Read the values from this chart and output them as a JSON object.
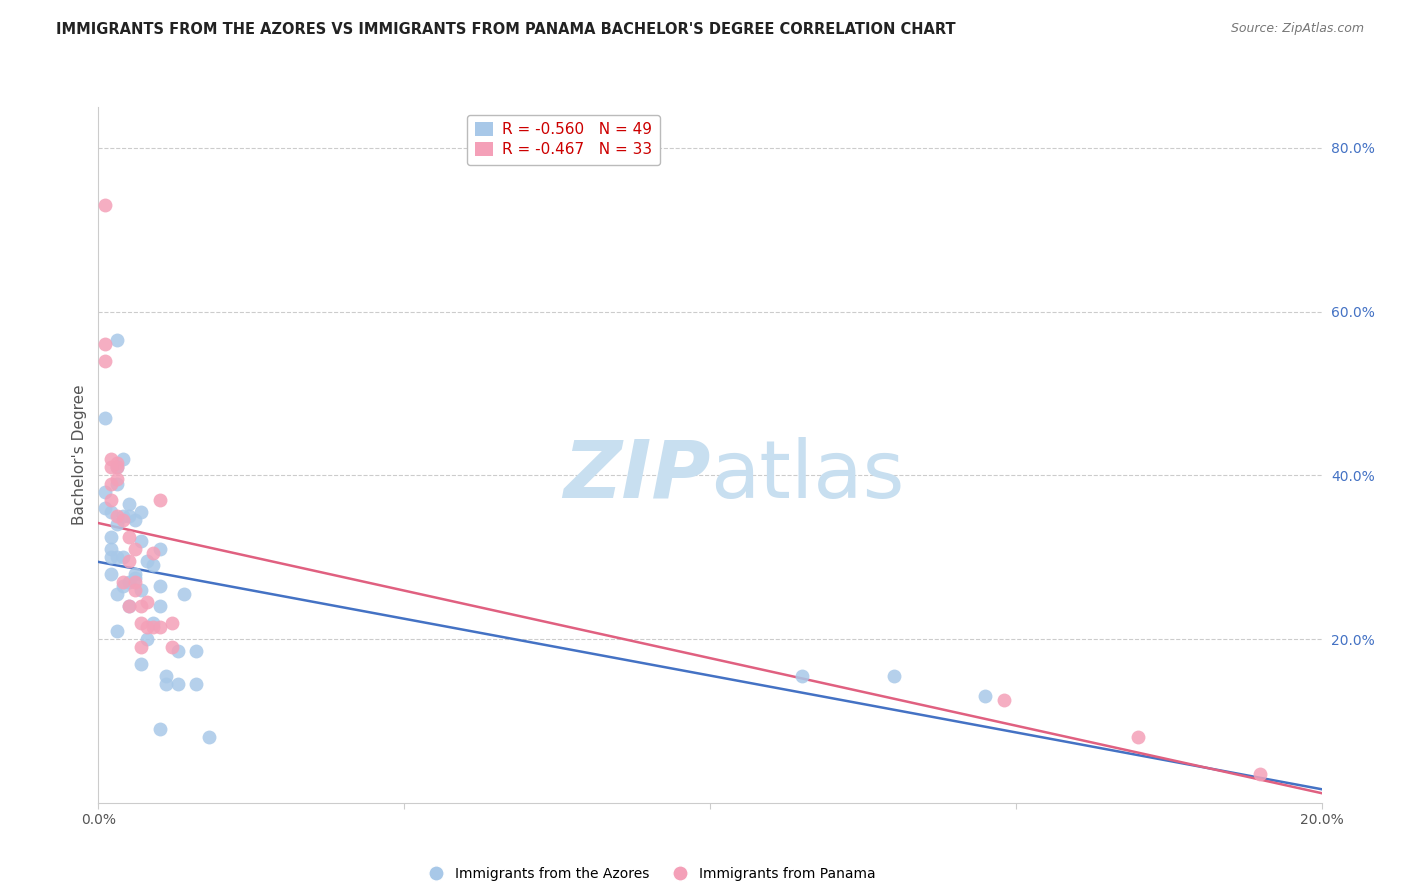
{
  "title": "IMMIGRANTS FROM THE AZORES VS IMMIGRANTS FROM PANAMA BACHELOR'S DEGREE CORRELATION CHART",
  "source": "Source: ZipAtlas.com",
  "ylabel": "Bachelor's Degree",
  "xlim": [
    0.0,
    0.2
  ],
  "ylim": [
    0.0,
    0.85
  ],
  "watermark_zip": "ZIP",
  "watermark_atlas": "atlas",
  "azores_color": "#a8c8e8",
  "azores_line_color": "#4472c4",
  "panama_color": "#f4a0b8",
  "panama_line_color": "#e06080",
  "azores_x": [
    0.001,
    0.001,
    0.001,
    0.002,
    0.002,
    0.002,
    0.002,
    0.002,
    0.003,
    0.003,
    0.003,
    0.003,
    0.003,
    0.003,
    0.003,
    0.004,
    0.004,
    0.004,
    0.004,
    0.005,
    0.005,
    0.005,
    0.005,
    0.006,
    0.006,
    0.006,
    0.007,
    0.007,
    0.007,
    0.007,
    0.008,
    0.008,
    0.009,
    0.009,
    0.01,
    0.01,
    0.01,
    0.01,
    0.011,
    0.011,
    0.013,
    0.013,
    0.014,
    0.016,
    0.016,
    0.018,
    0.115,
    0.13,
    0.145
  ],
  "azores_y": [
    0.47,
    0.38,
    0.36,
    0.355,
    0.325,
    0.31,
    0.3,
    0.28,
    0.565,
    0.41,
    0.39,
    0.34,
    0.3,
    0.255,
    0.21,
    0.42,
    0.35,
    0.3,
    0.265,
    0.365,
    0.35,
    0.27,
    0.24,
    0.345,
    0.28,
    0.275,
    0.355,
    0.32,
    0.26,
    0.17,
    0.295,
    0.2,
    0.29,
    0.22,
    0.31,
    0.265,
    0.24,
    0.09,
    0.155,
    0.145,
    0.185,
    0.145,
    0.255,
    0.185,
    0.145,
    0.08,
    0.155,
    0.155,
    0.13
  ],
  "panama_x": [
    0.001,
    0.001,
    0.001,
    0.002,
    0.002,
    0.002,
    0.002,
    0.003,
    0.003,
    0.003,
    0.003,
    0.004,
    0.004,
    0.005,
    0.005,
    0.005,
    0.006,
    0.006,
    0.006,
    0.007,
    0.007,
    0.007,
    0.008,
    0.008,
    0.009,
    0.009,
    0.01,
    0.01,
    0.012,
    0.012,
    0.148,
    0.17,
    0.19
  ],
  "panama_y": [
    0.73,
    0.56,
    0.54,
    0.42,
    0.41,
    0.39,
    0.37,
    0.415,
    0.41,
    0.395,
    0.35,
    0.345,
    0.27,
    0.325,
    0.295,
    0.24,
    0.31,
    0.27,
    0.26,
    0.24,
    0.22,
    0.19,
    0.245,
    0.215,
    0.305,
    0.215,
    0.37,
    0.215,
    0.22,
    0.19,
    0.125,
    0.08,
    0.035
  ],
  "azores_R": -0.56,
  "azores_N": 49,
  "panama_R": -0.467,
  "panama_N": 33,
  "right_yticks": [
    0.0,
    0.2,
    0.4,
    0.6,
    0.8
  ],
  "right_yticklabels": [
    "",
    "20.0%",
    "40.0%",
    "60.0%",
    "80.0%"
  ],
  "grid_color": "#cccccc",
  "spine_color": "#cccccc",
  "title_color": "#222222",
  "source_color": "#777777",
  "tick_color": "#555555",
  "right_tick_color": "#4472c4",
  "legend_R_color": "#cc0000",
  "legend_N_color": "#4472c4",
  "marker_size": 100,
  "line_width": 1.8
}
